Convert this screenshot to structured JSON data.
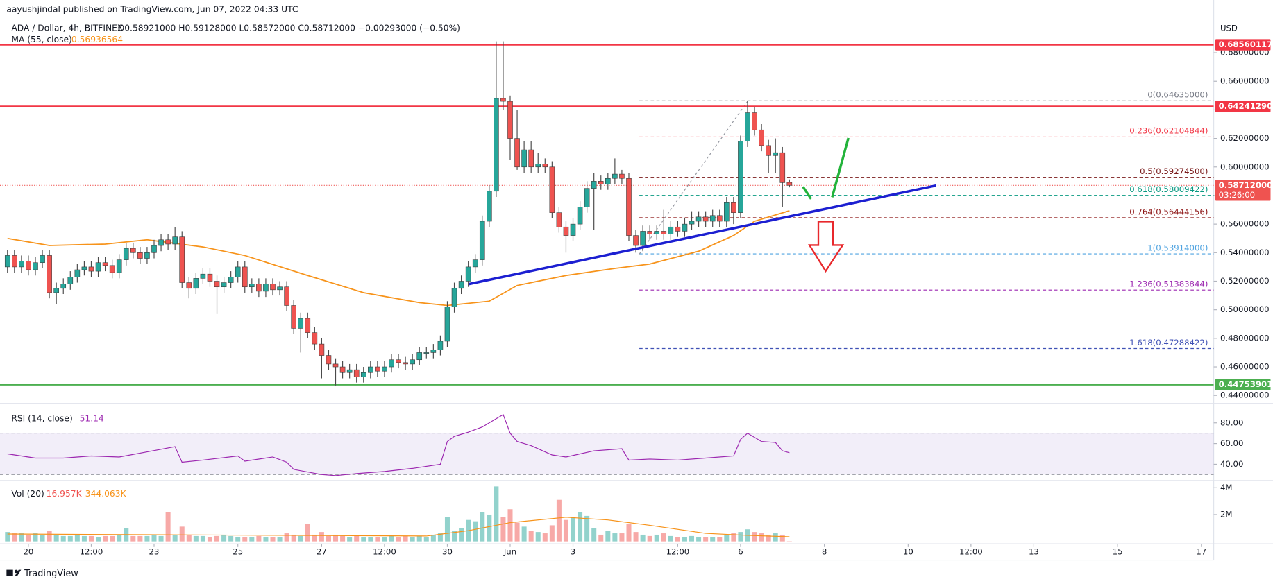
{
  "header": {
    "publisher": "aayushjindal published on TradingView.com, Jun 07, 2022 04:33 UTC",
    "symbol": "ADA / Dollar, 4h, BITFINEX",
    "ohlc": "O0.58921000 H0.59128000 L0.58572000 C0.58712000 −0.00293000 (−0.50%)",
    "ma_label": "MA (55, close)",
    "ma_value": "0.56936564",
    "rsi_label": "RSI (14, close)",
    "rsi_value": "51.14",
    "vol_label": "Vol (20)",
    "vol_value": "16.957K",
    "vol_ma_value": "344.063K",
    "currency": "USD",
    "countdown": "03:26:00",
    "brand": "TradingView"
  },
  "chart_data": {
    "type": "candlestick",
    "up_color": "#26a69a",
    "down_color": "#ef5350",
    "xlim": [
      -1.07,
      172.77
    ],
    "xticks": [
      {
        "value": 3,
        "label": "20"
      },
      {
        "value": 12,
        "label": "12:00"
      },
      {
        "value": 21,
        "label": "23"
      },
      {
        "value": 33,
        "label": "25"
      },
      {
        "value": 45,
        "label": "27"
      },
      {
        "value": 54,
        "label": "12:00"
      },
      {
        "value": 63,
        "label": "30"
      },
      {
        "value": 72,
        "label": "Jun"
      },
      {
        "value": 81,
        "label": "3"
      },
      {
        "value": 96,
        "label": "12:00"
      },
      {
        "value": 105,
        "label": "6"
      },
      {
        "value": 117,
        "label": "8"
      },
      {
        "value": 129,
        "label": "10"
      },
      {
        "value": 138,
        "label": "12:00"
      },
      {
        "value": 147,
        "label": "13"
      },
      {
        "value": 159,
        "label": "15"
      },
      {
        "value": 171,
        "label": "17"
      }
    ],
    "ylim": [
      0.43557,
      0.70557
    ],
    "yticks": [
      {
        "value": 0.44,
        "label": "0.44000000"
      },
      {
        "value": 0.46,
        "label": "0.46000000"
      },
      {
        "value": 0.48,
        "label": "0.48000000"
      },
      {
        "value": 0.5,
        "label": "0.50000000"
      },
      {
        "value": 0.52,
        "label": "0.52000000"
      },
      {
        "value": 0.54,
        "label": "0.54000000"
      },
      {
        "value": 0.56,
        "label": "0.56000000"
      },
      {
        "value": 0.58,
        "label": "0.58000000"
      },
      {
        "value": 0.6,
        "label": "0.60000000"
      },
      {
        "value": 0.62,
        "label": "0.62000000"
      },
      {
        "value": 0.64,
        "label": "0.64000000"
      },
      {
        "value": 0.66,
        "label": "0.66000000"
      },
      {
        "value": 0.68,
        "label": "0.68000000"
      }
    ],
    "candles": [
      [
        0.53,
        0.542,
        0.526,
        0.538
      ],
      [
        0.538,
        0.542,
        0.526,
        0.53
      ],
      [
        0.53,
        0.538,
        0.526,
        0.534
      ],
      [
        0.534,
        0.538,
        0.524,
        0.528
      ],
      [
        0.528,
        0.537,
        0.524,
        0.533
      ],
      [
        0.533,
        0.542,
        0.529,
        0.538
      ],
      [
        0.538,
        0.542,
        0.508,
        0.512
      ],
      [
        0.512,
        0.519,
        0.504,
        0.515
      ],
      [
        0.515,
        0.522,
        0.511,
        0.518
      ],
      [
        0.518,
        0.527,
        0.514,
        0.523
      ],
      [
        0.523,
        0.532,
        0.519,
        0.528
      ],
      [
        0.528,
        0.534,
        0.524,
        0.53
      ],
      [
        0.53,
        0.534,
        0.523,
        0.527
      ],
      [
        0.527,
        0.537,
        0.523,
        0.533
      ],
      [
        0.533,
        0.537,
        0.527,
        0.531
      ],
      [
        0.531,
        0.535,
        0.522,
        0.526
      ],
      [
        0.526,
        0.539,
        0.522,
        0.535
      ],
      [
        0.535,
        0.547,
        0.531,
        0.543
      ],
      [
        0.543,
        0.547,
        0.536,
        0.54
      ],
      [
        0.54,
        0.544,
        0.532,
        0.536
      ],
      [
        0.536,
        0.544,
        0.532,
        0.54
      ],
      [
        0.54,
        0.549,
        0.536,
        0.545
      ],
      [
        0.545,
        0.553,
        0.541,
        0.549
      ],
      [
        0.549,
        0.553,
        0.542,
        0.546
      ],
      [
        0.546,
        0.558,
        0.542,
        0.551
      ],
      [
        0.551,
        0.555,
        0.515,
        0.519
      ],
      [
        0.519,
        0.523,
        0.508,
        0.515
      ],
      [
        0.515,
        0.526,
        0.511,
        0.522
      ],
      [
        0.522,
        0.529,
        0.518,
        0.525
      ],
      [
        0.525,
        0.529,
        0.516,
        0.52
      ],
      [
        0.52,
        0.524,
        0.497,
        0.516
      ],
      [
        0.516,
        0.523,
        0.512,
        0.519
      ],
      [
        0.519,
        0.527,
        0.515,
        0.523
      ],
      [
        0.523,
        0.534,
        0.519,
        0.53
      ],
      [
        0.53,
        0.534,
        0.512,
        0.516
      ],
      [
        0.516,
        0.522,
        0.512,
        0.518
      ],
      [
        0.518,
        0.522,
        0.509,
        0.513
      ],
      [
        0.513,
        0.522,
        0.509,
        0.518
      ],
      [
        0.518,
        0.522,
        0.51,
        0.514
      ],
      [
        0.514,
        0.52,
        0.51,
        0.516
      ],
      [
        0.516,
        0.52,
        0.499,
        0.503
      ],
      [
        0.503,
        0.507,
        0.483,
        0.487
      ],
      [
        0.487,
        0.498,
        0.47,
        0.494
      ],
      [
        0.494,
        0.498,
        0.48,
        0.484
      ],
      [
        0.484,
        0.488,
        0.472,
        0.476
      ],
      [
        0.476,
        0.48,
        0.452,
        0.468
      ],
      [
        0.468,
        0.472,
        0.458,
        0.462
      ],
      [
        0.462,
        0.466,
        0.447,
        0.46
      ],
      [
        0.46,
        0.464,
        0.452,
        0.456
      ],
      [
        0.456,
        0.462,
        0.452,
        0.458
      ],
      [
        0.458,
        0.462,
        0.449,
        0.453
      ],
      [
        0.453,
        0.46,
        0.449,
        0.456
      ],
      [
        0.456,
        0.464,
        0.452,
        0.46
      ],
      [
        0.46,
        0.464,
        0.453,
        0.457
      ],
      [
        0.457,
        0.464,
        0.453,
        0.46
      ],
      [
        0.46,
        0.469,
        0.456,
        0.465
      ],
      [
        0.465,
        0.469,
        0.459,
        0.463
      ],
      [
        0.463,
        0.467,
        0.458,
        0.462
      ],
      [
        0.462,
        0.469,
        0.458,
        0.465
      ],
      [
        0.465,
        0.474,
        0.461,
        0.47
      ],
      [
        0.47,
        0.474,
        0.466,
        0.47
      ],
      [
        0.47,
        0.476,
        0.466,
        0.472
      ],
      [
        0.472,
        0.482,
        0.468,
        0.478
      ],
      [
        0.478,
        0.506,
        0.474,
        0.502
      ],
      [
        0.502,
        0.519,
        0.498,
        0.515
      ],
      [
        0.515,
        0.524,
        0.511,
        0.52
      ],
      [
        0.52,
        0.534,
        0.516,
        0.53
      ],
      [
        0.53,
        0.539,
        0.526,
        0.535
      ],
      [
        0.535,
        0.566,
        0.531,
        0.562
      ],
      [
        0.562,
        0.587,
        0.558,
        0.583
      ],
      [
        0.583,
        0.688,
        0.579,
        0.648
      ],
      [
        0.648,
        0.688,
        0.64,
        0.646
      ],
      [
        0.646,
        0.65,
        0.605,
        0.62
      ],
      [
        0.62,
        0.64,
        0.598,
        0.6
      ],
      [
        0.6,
        0.618,
        0.596,
        0.612
      ],
      [
        0.612,
        0.618,
        0.596,
        0.6
      ],
      [
        0.6,
        0.61,
        0.596,
        0.602
      ],
      [
        0.602,
        0.606,
        0.596,
        0.6
      ],
      [
        0.6,
        0.604,
        0.564,
        0.568
      ],
      [
        0.568,
        0.572,
        0.554,
        0.558
      ],
      [
        0.558,
        0.562,
        0.54,
        0.552
      ],
      [
        0.552,
        0.564,
        0.548,
        0.56
      ],
      [
        0.56,
        0.576,
        0.556,
        0.572
      ],
      [
        0.572,
        0.59,
        0.568,
        0.585
      ],
      [
        0.585,
        0.596,
        0.556,
        0.59
      ],
      [
        0.59,
        0.594,
        0.584,
        0.588
      ],
      [
        0.588,
        0.596,
        0.584,
        0.592
      ],
      [
        0.592,
        0.606,
        0.588,
        0.595
      ],
      [
        0.595,
        0.598,
        0.588,
        0.592
      ],
      [
        0.592,
        0.596,
        0.548,
        0.552
      ],
      [
        0.552,
        0.556,
        0.54,
        0.545
      ],
      [
        0.545,
        0.559,
        0.541,
        0.555
      ],
      [
        0.555,
        0.559,
        0.549,
        0.553
      ],
      [
        0.553,
        0.559,
        0.549,
        0.555
      ],
      [
        0.555,
        0.57,
        0.549,
        0.553
      ],
      [
        0.553,
        0.562,
        0.549,
        0.558
      ],
      [
        0.558,
        0.562,
        0.551,
        0.555
      ],
      [
        0.555,
        0.564,
        0.551,
        0.56
      ],
      [
        0.56,
        0.569,
        0.556,
        0.562
      ],
      [
        0.562,
        0.569,
        0.558,
        0.565
      ],
      [
        0.565,
        0.569,
        0.558,
        0.562
      ],
      [
        0.562,
        0.57,
        0.558,
        0.566
      ],
      [
        0.566,
        0.57,
        0.558,
        0.562
      ],
      [
        0.562,
        0.579,
        0.558,
        0.575
      ],
      [
        0.575,
        0.579,
        0.56,
        0.568
      ],
      [
        0.568,
        0.622,
        0.564,
        0.618
      ],
      [
        0.618,
        0.646,
        0.614,
        0.638
      ],
      [
        0.638,
        0.642,
        0.622,
        0.626
      ],
      [
        0.626,
        0.63,
        0.611,
        0.615
      ],
      [
        0.615,
        0.619,
        0.596,
        0.608
      ],
      [
        0.608,
        0.62,
        0.596,
        0.61
      ],
      [
        0.61,
        0.614,
        0.572,
        0.589
      ],
      [
        0.58921,
        0.59128,
        0.58572,
        0.58712
      ]
    ],
    "ma": {
      "color": "#f7931a",
      "x": [
        0,
        6,
        14,
        20,
        28,
        34,
        43,
        51,
        59,
        63,
        69,
        73,
        80,
        87,
        92,
        99,
        104,
        107,
        112
      ],
      "values": [
        0.55,
        0.545,
        0.546,
        0.549,
        0.544,
        0.538,
        0.524,
        0.512,
        0.505,
        0.503,
        0.506,
        0.517,
        0.524,
        0.529,
        0.532,
        0.541,
        0.552,
        0.562,
        0.56936564
      ]
    },
    "levels": {
      "values": [
        0.68560117,
        0.6424129,
        0.44753901
      ],
      "value_labels": [
        "0.68560117",
        "0.64241290",
        "0.44753901"
      ],
      "colors": [
        "#f23645",
        "#f23645",
        "#4caf50"
      ]
    },
    "last_price": {
      "value": 0.58712,
      "label": "0.58712000",
      "color": "#ef5350"
    },
    "fib": {
      "x_start": 90.5,
      "values": [
        0.64635,
        0.62104844,
        0.592745,
        0.58009422,
        0.56444156,
        0.53914,
        0.51383844,
        0.47288422
      ],
      "value_labels": [
        "0(0.64635000)",
        "0.236(0.62104844)",
        "0.5(0.59274500)",
        "0.618(0.58009422)",
        "0.764(0.56444156)",
        "1(0.53914000)",
        "1.236(0.51383844)",
        "1.618(0.47288422)"
      ],
      "colors": [
        "#787b86",
        "#f23645",
        "#7a1a1a",
        "#089981",
        "#8b1010",
        "#4fa3e0",
        "#9c27b0",
        "#3f51b5"
      ]
    },
    "trendline": {
      "color": "#1c1fd1",
      "x": [
        66.1,
        133
      ],
      "values": [
        0.518,
        0.587
      ]
    },
    "fib_diagonal": {
      "color": "#9598a1",
      "x": [
        90.5,
        106
      ],
      "values": [
        0.539,
        0.646
      ]
    },
    "rsi": {
      "color": "#9c27b0",
      "ylim": [
        24.3,
        94.9
      ],
      "yticks": [
        {
          "value": 80,
          "label": "80.00"
        },
        {
          "value": 60,
          "label": "60.00"
        },
        {
          "value": 40,
          "label": "40.00"
        }
      ],
      "band": [
        30,
        70
      ],
      "x": [
        0,
        4,
        8,
        12,
        16,
        20,
        24,
        25,
        28,
        33,
        34,
        38,
        40,
        41,
        45,
        47,
        50,
        54,
        58,
        62,
        63,
        64,
        66,
        68,
        70,
        71,
        72,
        73,
        75,
        78,
        80,
        84,
        88,
        89,
        92,
        96,
        100,
        104,
        105,
        106,
        108,
        110,
        111,
        112
      ],
      "values": [
        50,
        46,
        46,
        48,
        47,
        52,
        57,
        42,
        44,
        48,
        43,
        47,
        42,
        35,
        30,
        29,
        31,
        33,
        36,
        40,
        62,
        67,
        71,
        76,
        84,
        88,
        70,
        62,
        58,
        49,
        47,
        53,
        55,
        44,
        45,
        44,
        46,
        48,
        64,
        70,
        62,
        61,
        53,
        51.14
      ]
    },
    "volume": {
      "ylim": [
        0,
        4.36
      ],
      "yticks": [
        {
          "value": 4,
          "label": "4M"
        },
        {
          "value": 2,
          "label": "2M"
        }
      ],
      "values": [
        0.7,
        0.6,
        0.6,
        0.5,
        0.6,
        0.5,
        0.8,
        0.5,
        0.4,
        0.4,
        0.5,
        0.4,
        0.4,
        0.3,
        0.4,
        0.4,
        0.5,
        1.0,
        0.4,
        0.4,
        0.4,
        0.5,
        0.4,
        2.2,
        0.5,
        1.1,
        0.5,
        0.4,
        0.4,
        0.3,
        0.4,
        0.5,
        0.4,
        0.3,
        0.3,
        0.3,
        0.4,
        0.3,
        0.3,
        0.3,
        0.6,
        0.5,
        0.4,
        1.3,
        0.5,
        0.7,
        0.4,
        0.5,
        0.4,
        0.3,
        0.4,
        0.3,
        0.3,
        0.3,
        0.3,
        0.4,
        0.3,
        0.4,
        0.3,
        0.4,
        0.3,
        0.5,
        0.6,
        1.8,
        0.8,
        1.0,
        1.6,
        1.5,
        2.2,
        2.0,
        4.1,
        1.8,
        2.4,
        1.4,
        1.1,
        0.8,
        0.7,
        0.6,
        1.2,
        3.1,
        1.6,
        1.8,
        2.2,
        1.9,
        1.0,
        0.5,
        0.8,
        0.6,
        0.6,
        1.3,
        0.7,
        0.5,
        0.4,
        0.5,
        0.6,
        0.4,
        0.3,
        0.3,
        0.4,
        0.3,
        0.3,
        0.3,
        0.3,
        0.5,
        0.6,
        0.7,
        0.9,
        0.7,
        0.6,
        0.5,
        0.6,
        0.5,
        0.016957
      ],
      "ma": {
        "color": "#f7931a",
        "x": [
          0,
          20,
          40,
          60,
          66,
          72,
          80,
          86,
          92,
          100,
          106,
          112
        ],
        "values": [
          0.55,
          0.5,
          0.45,
          0.4,
          0.8,
          1.4,
          1.8,
          1.6,
          1.2,
          0.6,
          0.45,
          0.344063
        ]
      }
    }
  }
}
